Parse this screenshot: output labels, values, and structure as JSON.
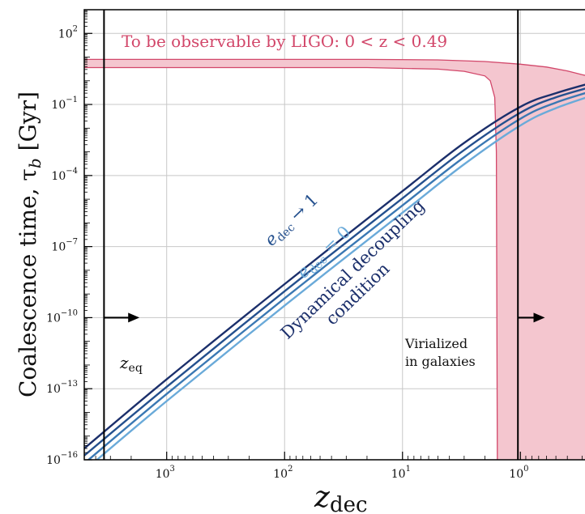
{
  "chart_data": {
    "type": "line",
    "title": "",
    "xlabel_main": "z",
    "xlabel_sub": "dec",
    "ylabel_main": "Coalescence time, τ",
    "ylabel_sub": "b",
    "ylabel_unit": " [Gyr]",
    "x_scale": "log (reversed)",
    "y_scale": "log",
    "xlim": [
      5000,
      0.2
    ],
    "ylim": [
      1e-16,
      1000.0
    ],
    "grid": true,
    "x_ticks": [
      {
        "value": 1000,
        "base": "10",
        "exp": "3"
      },
      {
        "value": 100,
        "base": "10",
        "exp": "2"
      },
      {
        "value": 10,
        "base": "10",
        "exp": "1"
      },
      {
        "value": 1,
        "base": "10",
        "exp": "0"
      }
    ],
    "y_ticks": [
      {
        "value": 100.0,
        "base": "10",
        "exp": "2"
      },
      {
        "value": 0.1,
        "base": "10",
        "exp": "−1"
      },
      {
        "value": 0.0001,
        "base": "10",
        "exp": "−4"
      },
      {
        "value": 1e-07,
        "base": "10",
        "exp": "−7"
      },
      {
        "value": 1e-10,
        "base": "10",
        "exp": "−10"
      },
      {
        "value": 1e-13,
        "base": "10",
        "exp": "−13"
      },
      {
        "value": 1e-16,
        "base": "10",
        "exp": "−16"
      }
    ],
    "series": [
      {
        "color": "#1b2f6b",
        "x": [
          5000,
          1000,
          100,
          10,
          3,
          1,
          0.5,
          0.2
        ],
        "y": [
          3e-16,
          2.5e-13,
          2.6e-09,
          2.2e-05,
          0.0024,
          0.08,
          0.3,
          1.1
        ]
      },
      {
        "color": "#24508e",
        "x": [
          5000,
          1000,
          100,
          10,
          3,
          1,
          0.5,
          0.2
        ],
        "y": [
          1.5e-16,
          1.2e-13,
          1.3e-09,
          1.1e-05,
          0.0012,
          0.045,
          0.2,
          0.75
        ]
      },
      {
        "color": "#3a78b3",
        "x": [
          5000,
          1000,
          100,
          10,
          3,
          1,
          0.5,
          0.2
        ],
        "y": [
          7e-17,
          6e-14,
          6.5e-10,
          5.5e-06,
          0.0006,
          0.025,
          0.12,
          0.5
        ]
      },
      {
        "color": "#6aaad9",
        "x": [
          5000,
          1000,
          100,
          10,
          3,
          1,
          0.5,
          0.2
        ],
        "y": [
          3.5e-17,
          3e-14,
          3.2e-10,
          2.7e-06,
          0.0003,
          0.013,
          0.07,
          0.33
        ]
      }
    ],
    "ligo_region": {
      "fill": "#f4c6cf",
      "stroke": "#d2476a",
      "upper": [
        [
          5000,
          8
        ],
        [
          20,
          8
        ],
        [
          5,
          7.6
        ],
        [
          2,
          6.5
        ],
        [
          1,
          5
        ],
        [
          0.6,
          3.8
        ],
        [
          0.4,
          2.6
        ],
        [
          0.3,
          1.8
        ],
        [
          0.2,
          1.2
        ]
      ],
      "lower": [
        [
          5000,
          3.6
        ],
        [
          20,
          3.6
        ],
        [
          5,
          3.1
        ],
        [
          3,
          2.5
        ],
        [
          2,
          1.6
        ],
        [
          1.8,
          1.0
        ],
        [
          1.65,
          0.2
        ],
        [
          1.6,
          0.001
        ],
        [
          1.57,
          1e-16
        ]
      ]
    },
    "vlines": [
      {
        "x": 3400,
        "label_main": "z",
        "label_sub": "eq"
      },
      {
        "x": 1.05,
        "label_line1": "Virialized",
        "label_line2": "in galaxies"
      }
    ],
    "arrows": [
      {
        "x_from": 3400,
        "x_to": 1700,
        "y": 1e-10
      },
      {
        "x_from": 1.05,
        "x_to": 0.62,
        "y": 1e-10
      }
    ],
    "annotations": {
      "ligo_label": "To be observable by LIGO: 0 < z < 0.49",
      "edec1_main": "e",
      "edec1_sub": "dec",
      "edec1_rel": " → 1",
      "edec0_main": "e",
      "edec0_sub": "dec",
      "edec0_rel": " = 0",
      "dyn_line1": "Dynamical decoupling",
      "dyn_line2": "condition"
    },
    "colors": {
      "ligo": "#d2476a",
      "ligo_fill": "#f4c6cf",
      "dark_blue": "#1b2f6b",
      "light_blue": "#6aaad9",
      "grid": "#c8c8c8"
    }
  }
}
